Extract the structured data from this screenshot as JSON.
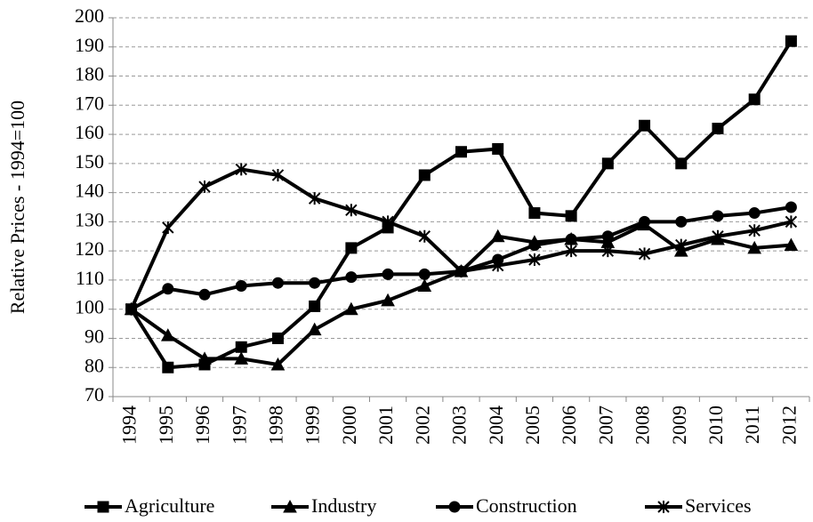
{
  "chart_data": {
    "type": "line",
    "y_label": "Relative  Prices - 1994=100",
    "categories": [
      "1994",
      "1995",
      "1996",
      "1997",
      "1998",
      "1999",
      "2000",
      "2001",
      "2002",
      "2003",
      "2004",
      "2005",
      "2006",
      "2007",
      "2008",
      "2009",
      "2010",
      "2011",
      "2012"
    ],
    "series": [
      {
        "name": "Agriculture",
        "color": "#000000",
        "marker": "square",
        "values": [
          100,
          80,
          81,
          87,
          90,
          101,
          121,
          128,
          146,
          154,
          155,
          133,
          132,
          150,
          163,
          150,
          162,
          172,
          192
        ]
      },
      {
        "name": "Industry",
        "color": "#000000",
        "marker": "triangle",
        "values": [
          100,
          91,
          83,
          83,
          81,
          93,
          100,
          103,
          108,
          113,
          125,
          123,
          124,
          123,
          129,
          120,
          124,
          121,
          122
        ]
      },
      {
        "name": "Construction",
        "color": "#000000",
        "marker": "circle",
        "values": [
          100,
          107,
          105,
          108,
          109,
          109,
          111,
          112,
          112,
          113,
          117,
          122,
          124,
          125,
          130,
          130,
          132,
          133,
          135
        ]
      },
      {
        "name": "Services",
        "color": "#000000",
        "marker": "asterisk",
        "values": [
          100,
          128,
          142,
          148,
          146,
          138,
          134,
          130,
          125,
          113,
          115,
          117,
          120,
          120,
          119,
          122,
          125,
          127,
          130
        ]
      }
    ],
    "ylim": [
      70,
      200
    ],
    "yticks": [
      70,
      80,
      90,
      100,
      110,
      120,
      130,
      140,
      150,
      160,
      170,
      180,
      190,
      200
    ],
    "grid": true,
    "legend": "bottom"
  }
}
